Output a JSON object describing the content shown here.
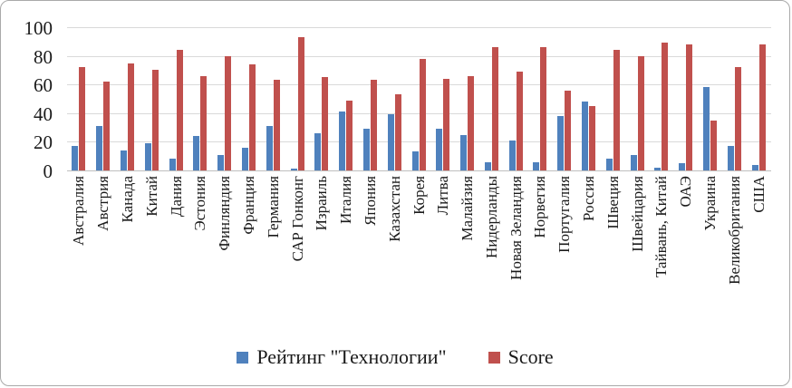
{
  "chart": {
    "background_color": "#ffffff",
    "frame_border_color": "#a9a9a9",
    "gridline_color": "#d9d9d9"
  },
  "legend": {
    "position": "bottom-center",
    "items": [
      {
        "label": "Рейтинг \"Технологии\"",
        "color": "#4f81bd"
      },
      {
        "label": "Score",
        "color": "#c0504d"
      }
    ]
  },
  "chart_data": {
    "type": "bar",
    "title": "",
    "xlabel": "",
    "ylabel": "",
    "ylim": [
      0,
      100
    ],
    "yticks": [
      0,
      20,
      40,
      60,
      80,
      100
    ],
    "grid": true,
    "legend_position": "bottom",
    "categories": [
      "Австралия",
      "Австрия",
      "Канада",
      "Китай",
      "Дания",
      "Эстония",
      "Финляндия",
      "Франция",
      "Германия",
      "САР Гонконг",
      "Израиль",
      "Италия",
      "Япония",
      "Казахстан",
      "Корея",
      "Литва",
      "Малайзия",
      "Нидерланды",
      "Новая Зеландия",
      "Норвегия",
      "Португалия",
      "Россия",
      "Швеция",
      "Швейцария",
      "Тайвань, Китай",
      "ОАЭ",
      "Украина",
      "Великобритания",
      "США"
    ],
    "series": [
      {
        "name": "Рейтинг \"Технологии\"",
        "color": "#4f81bd",
        "values": [
          17,
          31,
          14,
          19,
          8,
          24,
          11,
          16,
          31,
          1,
          26,
          41,
          29,
          39,
          13,
          29,
          25,
          6,
          21,
          6,
          38,
          48,
          8,
          11,
          2,
          5,
          58,
          17,
          4
        ]
      },
      {
        "name": "Score",
        "color": "#c0504d",
        "values": [
          72,
          62,
          75,
          70,
          84,
          66,
          80,
          74,
          63,
          93,
          65,
          49,
          63,
          53,
          78,
          64,
          66,
          86,
          69,
          86,
          56,
          45,
          84,
          80,
          89,
          88,
          35,
          72,
          88
        ]
      }
    ]
  }
}
